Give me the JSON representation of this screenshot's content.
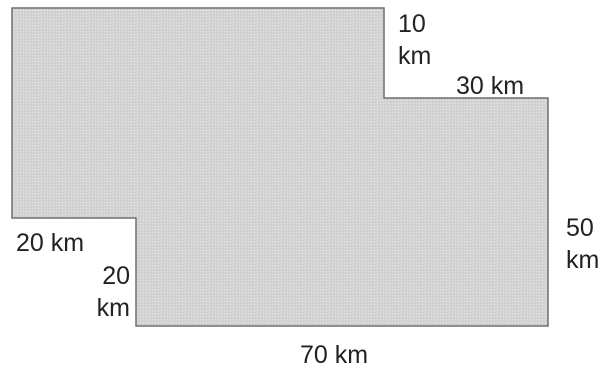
{
  "shape": {
    "fill_color": "#d6d6d6",
    "outline_color": "#6f6f6f"
  },
  "labels": {
    "top_notch_height": [
      "10",
      "km"
    ],
    "top_notch_width": "30 km",
    "right_side": [
      "50",
      "km"
    ],
    "bottom_side": "70 km",
    "bottom_notch_width": "20 km",
    "bottom_notch_height": [
      "20",
      "km"
    ]
  }
}
